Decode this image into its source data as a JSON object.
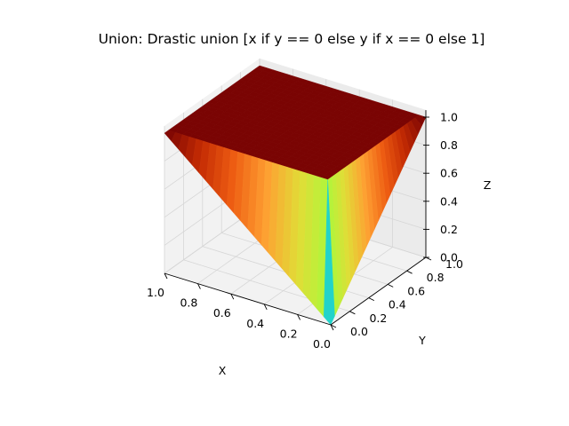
{
  "chart_data": {
    "type": "surface3d",
    "title": "Union: Drastic union [x if y == 0 else y if x == 0 else 1]",
    "xlabel": "X",
    "ylabel": "Y",
    "zlabel": "Z",
    "xlim": [
      0,
      1
    ],
    "ylim": [
      0,
      1
    ],
    "zlim": [
      0,
      1
    ],
    "x_ticks": [
      "0.0",
      "0.2",
      "0.4",
      "0.6",
      "0.8",
      "1.0"
    ],
    "y_ticks": [
      "0.0",
      "0.2",
      "0.4",
      "0.6",
      "0.8",
      "1.0"
    ],
    "z_ticks": [
      "0.0",
      "0.2",
      "0.4",
      "0.6",
      "0.8",
      "1.0"
    ],
    "colormap": "turbo",
    "grid": true,
    "surface": {
      "rule": "z = x if y == 0, y if x == 0, else 1",
      "corner_points": [
        {
          "x": 0,
          "y": 0,
          "z": 0
        },
        {
          "x": 1,
          "y": 0,
          "z": 1
        },
        {
          "x": 0,
          "y": 1,
          "z": 1
        },
        {
          "x": 1,
          "y": 1,
          "z": 1
        }
      ]
    }
  }
}
